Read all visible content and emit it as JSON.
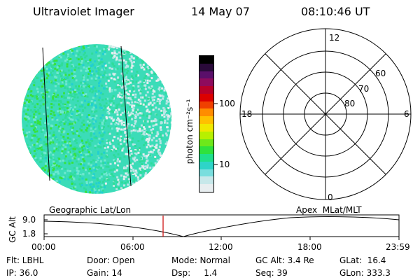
{
  "header": {
    "instrument": "Ultraviolet Imager",
    "date": "14 May 07",
    "time": "08:10:46 UT"
  },
  "colorbar": {
    "unit_label": "photon cm⁻²s⁻¹",
    "tick_100": "100",
    "tick_10": "10",
    "colors": [
      "#000000",
      "#2a0a3a",
      "#5a0f6a",
      "#8e0b5e",
      "#b8002a",
      "#dc0000",
      "#f04000",
      "#ff8c00",
      "#ffc000",
      "#f0e800",
      "#b8f000",
      "#6ee81a",
      "#2fe23d",
      "#1fe08c",
      "#2ed4c8",
      "#79dede",
      "#c7e8ea",
      "#e8eef0"
    ]
  },
  "polar_plot": {
    "mlt_top": "12",
    "mlt_left": "18",
    "mlt_right": "6",
    "mlt_bottom": "0",
    "lat_60": "60",
    "lat_70": "70",
    "lat_80": "80"
  },
  "altitude_strip": {
    "left_title": "Geographic Lat/Lon",
    "right_title": "Apex  MLat/MLT",
    "axis_label": "GC Alt",
    "y_top": "9.0",
    "y_bottom": "1.8",
    "ticks": [
      "00:00",
      "06:00",
      "12:00",
      "18:00",
      "23:59"
    ],
    "marker_color": "#cc0000"
  },
  "info": {
    "flt": "Flt: LBHL",
    "door": "Door: Open",
    "mode": "Mode: Normal",
    "gc_alt": "GC Alt: 3.4 Re",
    "glat": "GLat:  16.4",
    "ip": "IP: 36.0",
    "gain": "Gain: 14",
    "dsp": "Dsp:     1.4",
    "seq": "Seq: 39",
    "glon": "GLon: 333.3"
  }
}
